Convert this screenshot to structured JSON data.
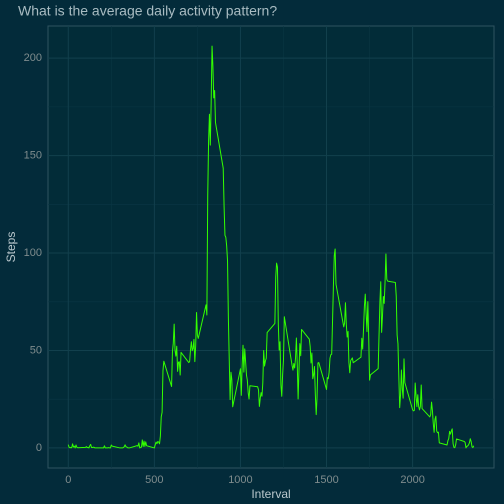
{
  "chart_data": {
    "type": "line",
    "title": "What is the average daily activity pattern?",
    "x_label": "Interval",
    "y_label": "Steps",
    "x": [
      0,
      5,
      10,
      15,
      20,
      25,
      30,
      35,
      40,
      45,
      50,
      55,
      100,
      105,
      110,
      115,
      120,
      125,
      130,
      135,
      140,
      145,
      150,
      155,
      200,
      205,
      210,
      215,
      220,
      225,
      230,
      235,
      240,
      245,
      250,
      255,
      300,
      305,
      310,
      315,
      320,
      325,
      330,
      335,
      340,
      345,
      350,
      355,
      400,
      405,
      410,
      415,
      420,
      425,
      430,
      435,
      440,
      445,
      450,
      455,
      500,
      505,
      510,
      515,
      520,
      525,
      530,
      535,
      540,
      545,
      550,
      555,
      600,
      605,
      610,
      615,
      620,
      625,
      630,
      635,
      640,
      645,
      650,
      655,
      700,
      705,
      710,
      715,
      720,
      725,
      730,
      735,
      740,
      745,
      750,
      755,
      800,
      805,
      810,
      815,
      820,
      825,
      830,
      835,
      840,
      845,
      850,
      855,
      900,
      905,
      910,
      915,
      920,
      925,
      930,
      935,
      940,
      945,
      950,
      955,
      1000,
      1005,
      1010,
      1015,
      1020,
      1025,
      1030,
      1035,
      1040,
      1045,
      1050,
      1055,
      1100,
      1105,
      1110,
      1115,
      1120,
      1125,
      1130,
      1135,
      1140,
      1145,
      1150,
      1155,
      1200,
      1205,
      1210,
      1215,
      1220,
      1225,
      1230,
      1235,
      1240,
      1245,
      1250,
      1255,
      1300,
      1305,
      1310,
      1315,
      1320,
      1325,
      1330,
      1335,
      1340,
      1345,
      1350,
      1355,
      1400,
      1405,
      1410,
      1415,
      1420,
      1425,
      1430,
      1435,
      1440,
      1445,
      1450,
      1455,
      1500,
      1505,
      1510,
      1515,
      1520,
      1525,
      1530,
      1535,
      1540,
      1545,
      1550,
      1555,
      1600,
      1605,
      1610,
      1615,
      1620,
      1625,
      1630,
      1635,
      1640,
      1645,
      1650,
      1655,
      1700,
      1705,
      1710,
      1715,
      1720,
      1725,
      1730,
      1735,
      1740,
      1745,
      1750,
      1755,
      1800,
      1805,
      1810,
      1815,
      1820,
      1825,
      1830,
      1835,
      1840,
      1845,
      1850,
      1855,
      1900,
      1905,
      1910,
      1915,
      1920,
      1925,
      1930,
      1935,
      1940,
      1945,
      1950,
      1955,
      2000,
      2005,
      2010,
      2015,
      2020,
      2025,
      2030,
      2035,
      2040,
      2045,
      2050,
      2055,
      2100,
      2105,
      2110,
      2115,
      2120,
      2125,
      2130,
      2135,
      2140,
      2145,
      2150,
      2155,
      2200,
      2205,
      2210,
      2215,
      2220,
      2225,
      2230,
      2235,
      2240,
      2245,
      2250,
      2255,
      2300,
      2305,
      2310,
      2315,
      2320,
      2325,
      2330,
      2335,
      2340,
      2345,
      2350,
      2355
    ],
    "values": [
      1.7,
      0.3,
      0.1,
      0.2,
      0.1,
      2.1,
      0.5,
      0.9,
      0,
      1.5,
      0.3,
      0.1,
      0.3,
      0.7,
      0.2,
      0.3,
      0,
      1.1,
      1.8,
      0.2,
      0.2,
      0.4,
      0.3,
      0,
      0,
      0,
      1.1,
      0,
      0,
      0.1,
      0,
      0.2,
      0,
      0,
      1.5,
      0.9,
      0,
      0,
      0,
      0,
      0.2,
      0.6,
      1.6,
      0.6,
      0.5,
      0.1,
      0,
      0,
      1.2,
      0.9,
      2.6,
      0,
      0.3,
      0.4,
      4.1,
      0.7,
      3.5,
      0.8,
      3.1,
      1.1,
      0,
      1.6,
      3,
      2.2,
      3.3,
      3,
      2.1,
      6.1,
      16,
      18.3,
      39.5,
      44.5,
      31.5,
      49.3,
      53.8,
      63.5,
      50,
      47.1,
      52.2,
      39.3,
      44,
      44.2,
      37.4,
      49,
      43.8,
      44.4,
      50.5,
      54.5,
      49.9,
      51,
      55.7,
      44.3,
      52.3,
      69.5,
      57.8,
      56.2,
      73.4,
      68.2,
      129.4,
      157.5,
      171.2,
      155.4,
      177.3,
      206.2,
      195.9,
      179.6,
      183.4,
      167,
      143.5,
      124,
      109.1,
      108.1,
      103.7,
      96,
      66.2,
      45.2,
      24.8,
      38.8,
      35,
      21.1,
      40.6,
      27,
      42.4,
      52.7,
      38.9,
      50.8,
      44.3,
      37.4,
      34.7,
      28.3,
      25.1,
      31.9,
      31.4,
      29.7,
      21.3,
      25.5,
      28.4,
      26.5,
      33.4,
      50,
      42,
      44.6,
      46,
      59.2,
      63.9,
      87.7,
      94.8,
      92.8,
      63.4,
      50.2,
      54.5,
      32.4,
      26.5,
      37.7,
      45.1,
      67.3,
      42.3,
      39.9,
      43.3,
      41,
      46.2,
      56.4,
      42.8,
      25.1,
      40,
      53.5,
      47.3,
      60.8,
      55.8,
      52,
      43.6,
      48.7,
      35.5,
      37.5,
      41.8,
      27.5,
      17.1,
      26.1,
      43.6,
      43.8,
      30,
      36.1,
      35.5,
      38.8,
      46,
      47.8,
      48.1,
      65.3,
      82.9,
      98.7,
      102.1,
      84,
      62.1,
      64.1,
      74.5,
      63.2,
      56.9,
      59.8,
      43.9,
      38.6,
      44.7,
      45.5,
      46.2,
      43.7,
      46.6,
      56.3,
      50.7,
      61.2,
      72.7,
      78.9,
      68.9,
      59.7,
      75.1,
      56.5,
      34.8,
      37.5,
      40.7,
      58,
      74.7,
      85.3,
      59.3,
      67.8,
      77.7,
      74.2,
      85.3,
      99.5,
      86.6,
      85.6,
      84.9,
      77.8,
      58,
      53.4,
      36.3,
      20.7,
      27.4,
      40,
      30.2,
      25.5,
      45.7,
      33.5,
      19.6,
      19,
      19.3,
      33.3,
      26.8,
      21.2,
      27.3,
      21.3,
      19.5,
      21.3,
      32.3,
      20.2,
      15.9,
      17.2,
      23.5,
      19.2,
      12.5,
      8,
      14.7,
      16.3,
      8.7,
      7.8,
      8.1,
      2.6,
      1.5,
      3.7,
      4.8,
      8.5,
      7.1,
      8.7,
      9.8,
      2.2,
      0.3,
      0.1,
      1.6,
      4.6,
      3.3,
      2.8,
      0,
      0.8,
      1,
      1.6,
      2.6,
      4.7,
      3.3,
      0.6,
      0.2,
      1.1
    ],
    "color": "#33ff00",
    "xlim": [
      -117.75,
      2472.75
    ],
    "xticks": [
      0,
      500,
      1000,
      1500,
      2000
    ],
    "ylim": [
      -10.3,
      216.5
    ],
    "yticks": [
      0,
      50,
      100,
      150,
      200
    ],
    "grid": true
  }
}
